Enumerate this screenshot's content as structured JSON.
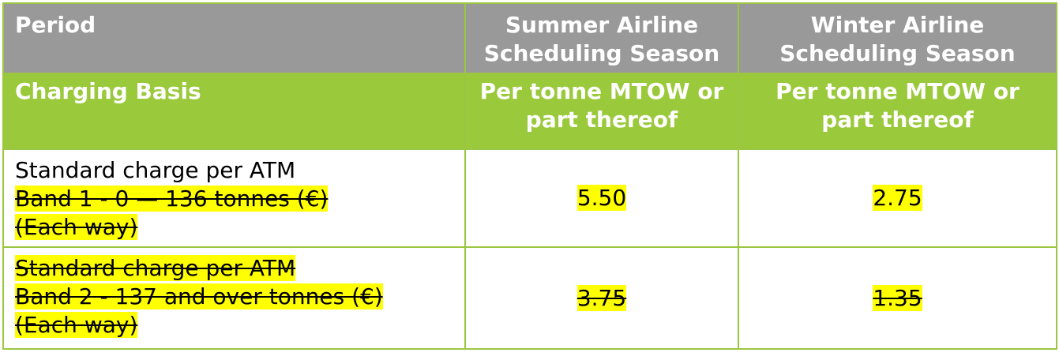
{
  "table": {
    "header": {
      "period": "Period",
      "summer": [
        "Summer Airline",
        "Scheduling Season"
      ],
      "winter": [
        "Winter Airline",
        "Scheduling Season"
      ]
    },
    "basis": {
      "label": "Charging Basis",
      "summer": [
        "Per tonne MTOW or",
        "part thereof"
      ],
      "winter": [
        "Per tonne MTOW or",
        "part thereof"
      ]
    },
    "rows": [
      {
        "lines": [
          "Standard charge per ATM",
          "Band 1 - 0 — 136 tonnes (€)",
          "(Each way)"
        ],
        "summer": "5.50",
        "winter": "2.75"
      },
      {
        "lines": [
          "Standard charge per ATM",
          "Band 2 - 137 and over tonnes (€)",
          "(Each way)"
        ],
        "summer": "3.75",
        "winter": "1.35"
      }
    ],
    "colors": {
      "header_bg": "#999999",
      "basis_bg": "#9bc93c",
      "border": "#9bc642",
      "highlight": "#ffff00"
    }
  }
}
